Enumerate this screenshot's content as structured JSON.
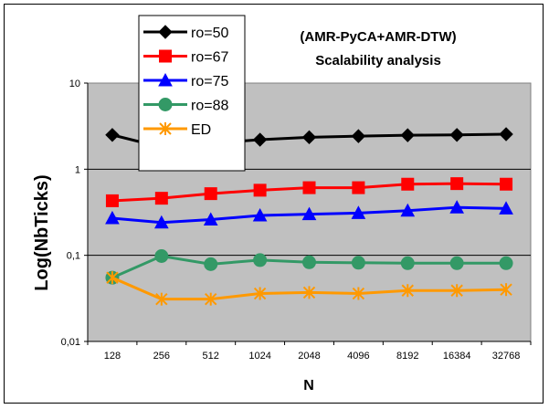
{
  "chart_data": {
    "type": "line",
    "title": "(AMR-PyCA+AMR-DTW)",
    "subtitle": "Scalability analysis",
    "xlabel": "N",
    "ylabel": "Log(NbTicks)",
    "yscale": "log",
    "ylim": [
      0.01,
      10
    ],
    "ytick_labels": [
      "0,01",
      "0,1",
      "1",
      "10"
    ],
    "categories": [
      "128",
      "256",
      "512",
      "1024",
      "2048",
      "4096",
      "8192",
      "16384",
      "32768"
    ],
    "grid": "horizontal major",
    "legend_position": "top-left",
    "plot_background": "#c0c0c0",
    "series": [
      {
        "name": "ro=50",
        "color": "#000000",
        "marker": "diamond",
        "values": [
          2.5,
          1.8,
          2.0,
          2.2,
          2.35,
          2.42,
          2.48,
          2.5,
          2.55
        ]
      },
      {
        "name": "ro=67",
        "color": "#ff0000",
        "marker": "square",
        "values": [
          0.43,
          0.46,
          0.52,
          0.57,
          0.61,
          0.61,
          0.67,
          0.68,
          0.67
        ]
      },
      {
        "name": "ro=75",
        "color": "#0000ff",
        "marker": "triangle",
        "values": [
          0.27,
          0.24,
          0.26,
          0.29,
          0.3,
          0.31,
          0.33,
          0.36,
          0.35
        ]
      },
      {
        "name": "ro=88",
        "color": "#339966",
        "marker": "circle",
        "values": [
          0.055,
          0.098,
          0.079,
          0.088,
          0.083,
          0.082,
          0.081,
          0.081,
          0.081
        ]
      },
      {
        "name": "ED",
        "color": "#ff9900",
        "marker": "asterisk",
        "values": [
          0.055,
          0.031,
          0.031,
          0.036,
          0.037,
          0.036,
          0.039,
          0.039,
          0.04
        ]
      }
    ]
  }
}
